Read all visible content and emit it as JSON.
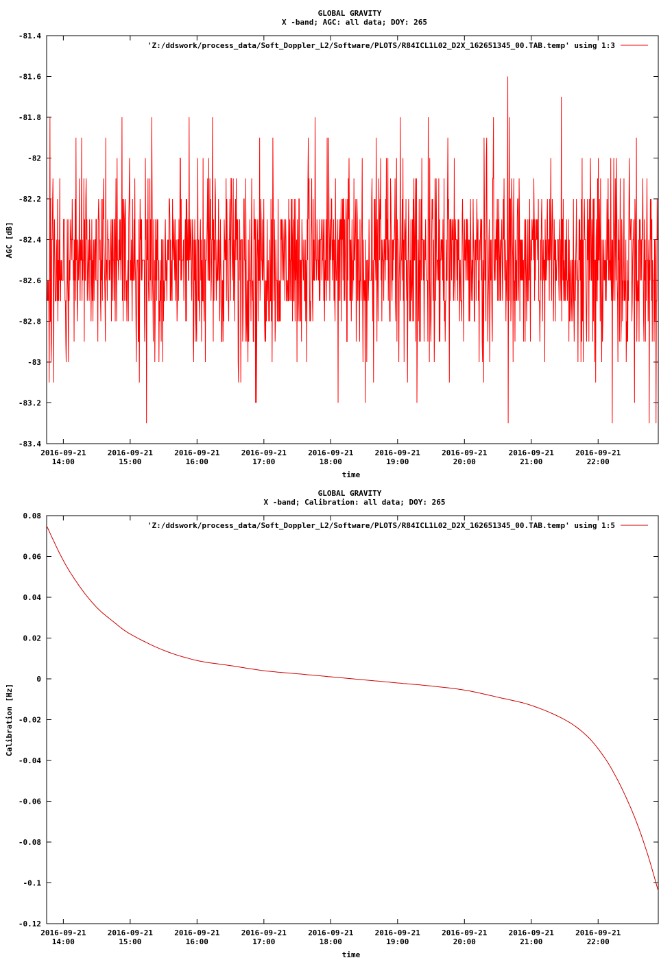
{
  "chart_data": [
    {
      "type": "line",
      "title": "GLOBAL GRAVITY",
      "subtitle": "X -band; AGC: all data; DOY: 265",
      "xlabel": "time",
      "ylabel": "AGC [dB]",
      "ylim": [
        -83.4,
        -81.4
      ],
      "yticks": [
        "-81.4",
        "-81.6",
        "-81.8",
        "-82",
        "-82.2",
        "-82.4",
        "-82.6",
        "-82.8",
        "-83",
        "-83.2",
        "-83.4"
      ],
      "xlim": [
        "2016-09-21 13:45",
        "2016-09-21 22:54"
      ],
      "xtick_dates": [
        "2016-09-21",
        "2016-09-21",
        "2016-09-21",
        "2016-09-21",
        "2016-09-21",
        "2016-09-21",
        "2016-09-21",
        "2016-09-21",
        "2016-09-21"
      ],
      "xtick_times": [
        "14:00",
        "15:00",
        "16:00",
        "17:00",
        "18:00",
        "19:00",
        "20:00",
        "21:00",
        "22:00"
      ],
      "legend_position": "top-right",
      "color": "#ff0000",
      "series": [
        {
          "name": "'Z:/ddswork/process_data/Soft_Doppler_L2/Software/PLOTS/R84ICL1L02_D2X_162651345_00.TAB.temp' using 1:3",
          "summary": {
            "mean": -82.5,
            "typical_range": [
              -82.9,
              -82.2
            ],
            "quantization": 0.1
          },
          "notable_points": [
            {
              "x": "2016-09-21 13:48",
              "y": -81.8
            },
            {
              "x": "2016-09-21 14:53",
              "y": -81.8
            },
            {
              "x": "2016-09-21 15:15",
              "y": -83.3
            },
            {
              "x": "2016-09-21 17:46",
              "y": -81.8
            },
            {
              "x": "2016-09-21 20:39",
              "y": -81.6
            },
            {
              "x": "2016-09-21 20:39",
              "y": -83.3
            },
            {
              "x": "2016-09-21 21:27",
              "y": -81.7
            },
            {
              "x": "2016-09-21 22:13",
              "y": -83.3
            },
            {
              "x": "2016-09-21 22:46",
              "y": -83.3
            },
            {
              "x": "2016-09-21 22:52",
              "y": -83.3
            }
          ]
        }
      ]
    },
    {
      "type": "line",
      "title": "GLOBAL GRAVITY",
      "subtitle": "X -band; Calibration: all data; DOY: 265",
      "xlabel": "time",
      "ylabel": "Calibration [Hz]",
      "ylim": [
        -0.12,
        0.08
      ],
      "yticks": [
        "0.08",
        "0.06",
        "0.04",
        "0.02",
        "0",
        "-0.02",
        "-0.04",
        "-0.06",
        "-0.08",
        "-0.1",
        "-0.12"
      ],
      "xlim": [
        "2016-09-21 13:45",
        "2016-09-21 22:54"
      ],
      "xtick_dates": [
        "2016-09-21",
        "2016-09-21",
        "2016-09-21",
        "2016-09-21",
        "2016-09-21",
        "2016-09-21",
        "2016-09-21",
        "2016-09-21",
        "2016-09-21"
      ],
      "xtick_times": [
        "14:00",
        "15:00",
        "16:00",
        "17:00",
        "18:00",
        "19:00",
        "20:00",
        "21:00",
        "22:00"
      ],
      "legend_position": "top-right",
      "color": "#cc0000",
      "series": [
        {
          "name": "'Z:/ddswork/process_data/Soft_Doppler_L2/Software/PLOTS/R84ICL1L02_D2X_162651345_00.TAB.temp' using 1:5",
          "x": [
            "2016-09-21 13:45",
            "2016-09-21 14:00",
            "2016-09-21 14:15",
            "2016-09-21 14:30",
            "2016-09-21 14:45",
            "2016-09-21 15:00",
            "2016-09-21 15:30",
            "2016-09-21 16:00",
            "2016-09-21 16:30",
            "2016-09-21 17:00",
            "2016-09-21 17:30",
            "2016-09-21 18:00",
            "2016-09-21 18:30",
            "2016-09-21 19:00",
            "2016-09-21 19:30",
            "2016-09-21 20:00",
            "2016-09-21 20:30",
            "2016-09-21 21:00",
            "2016-09-21 21:30",
            "2016-09-21 21:50",
            "2016-09-21 22:05",
            "2016-09-21 22:15",
            "2016-09-21 22:25",
            "2016-09-21 22:35",
            "2016-09-21 22:45",
            "2016-09-21 22:54"
          ],
          "values": [
            0.075,
            0.058,
            0.045,
            0.035,
            0.028,
            0.022,
            0.014,
            0.009,
            0.0065,
            0.004,
            0.0025,
            0.001,
            -0.0005,
            -0.002,
            -0.0035,
            -0.0055,
            -0.009,
            -0.013,
            -0.02,
            -0.028,
            -0.038,
            -0.047,
            -0.058,
            -0.071,
            -0.087,
            -0.104
          ]
        }
      ]
    }
  ]
}
